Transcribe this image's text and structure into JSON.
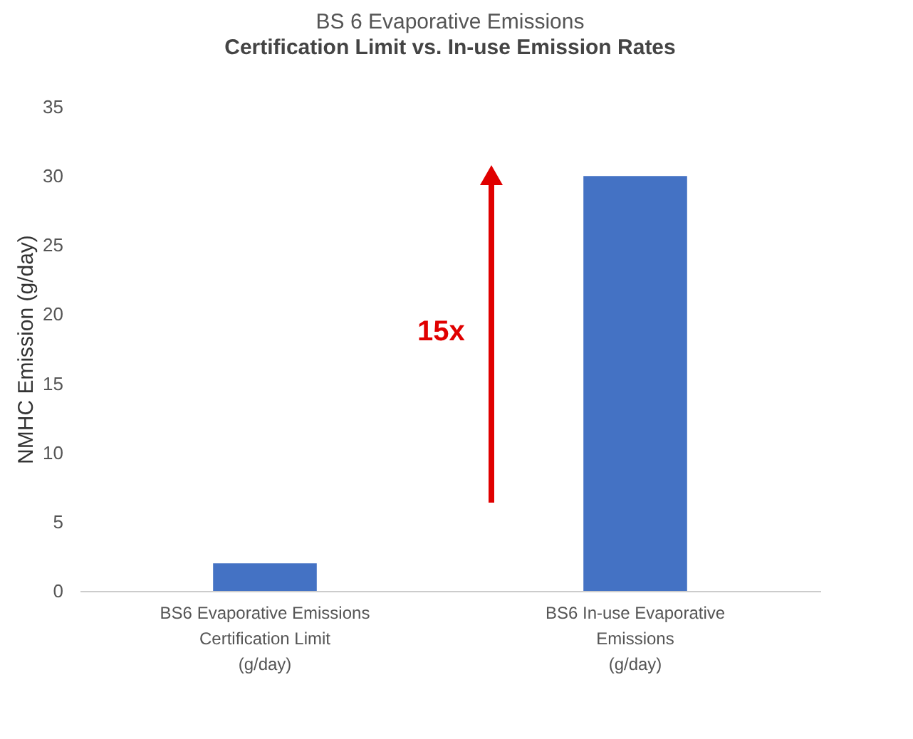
{
  "chart_data": {
    "type": "bar",
    "title": "BS 6 Evaporative Emissions",
    "subtitle": "Certification Limit vs. In-use Emission Rates",
    "ylabel": "NMHC Emission (g/day)",
    "categories": [
      "BS6 Evaporative Emissions\nCertification Limit\n(g/day)",
      "BS6 In-use Evaporative\nEmissions\n(g/day)"
    ],
    "values": [
      2,
      30
    ],
    "color": "#4472c4",
    "ylim": [
      0,
      35
    ],
    "yticks": [
      0,
      5,
      10,
      15,
      20,
      25,
      30,
      35
    ],
    "grid": false,
    "annotations": [
      "15x"
    ]
  }
}
